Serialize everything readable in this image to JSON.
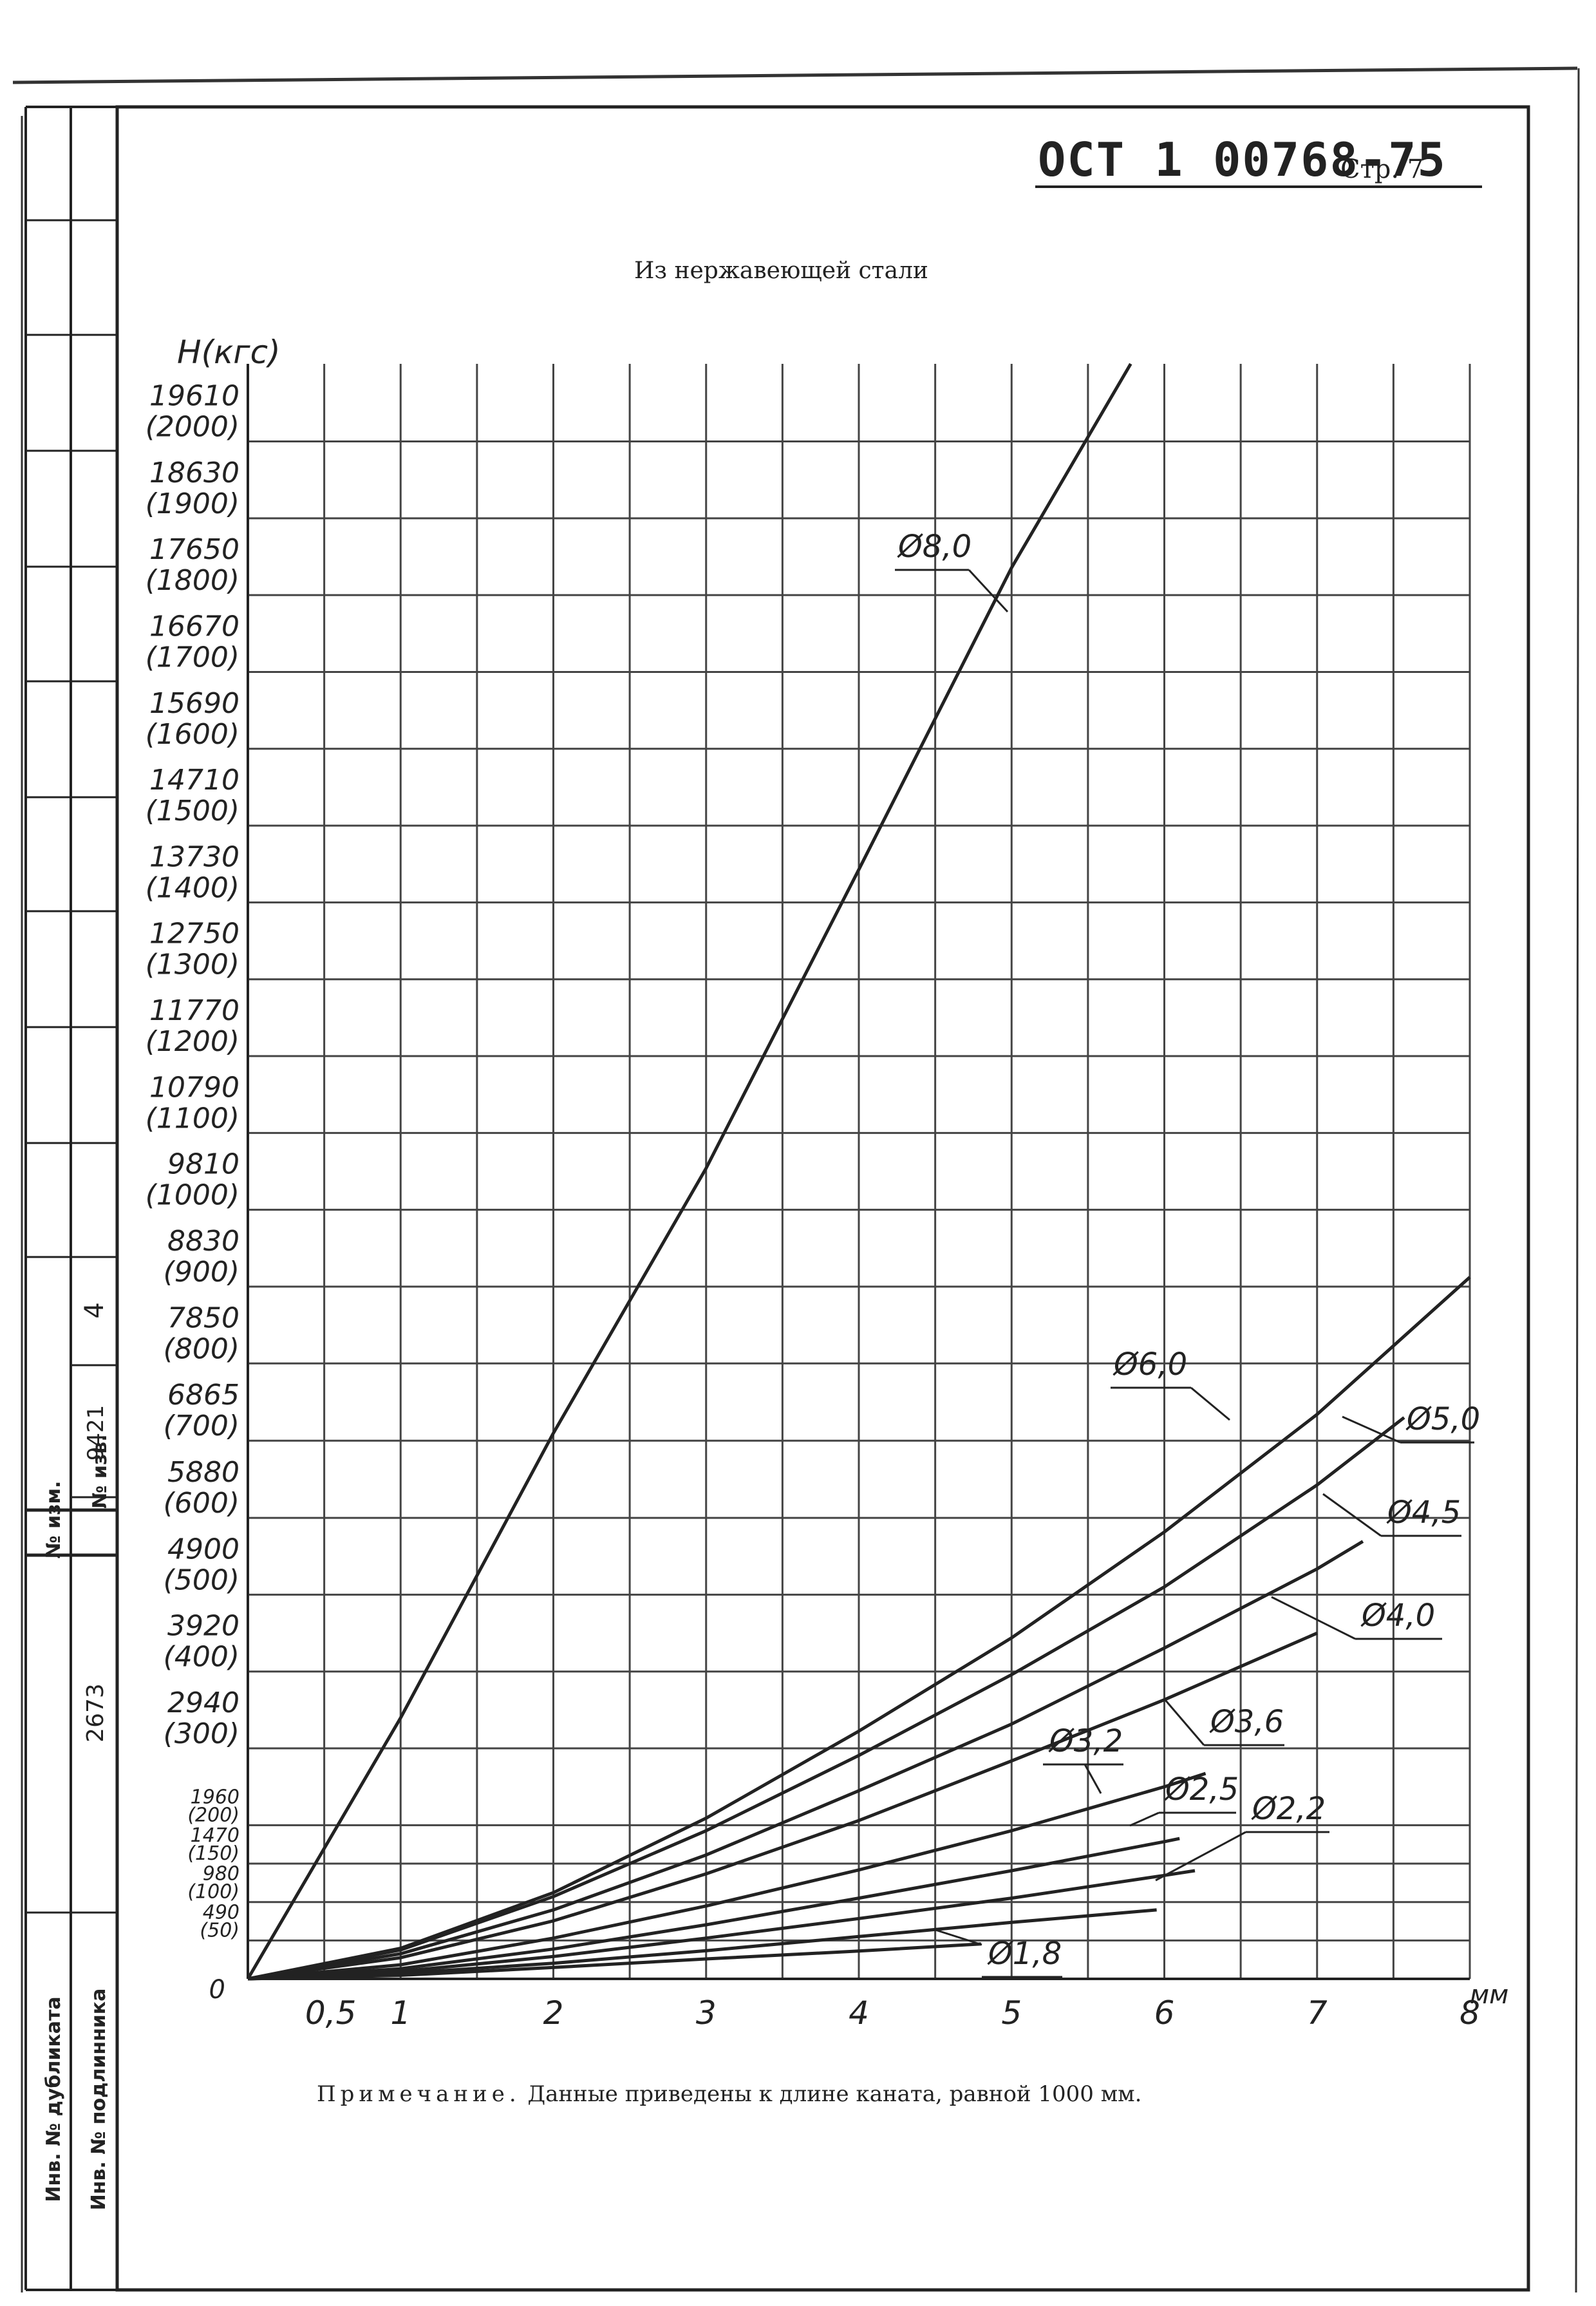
{
  "document": {
    "code": "ОСТ 1 00768-75",
    "page_label": "Стр. 7",
    "note_lead": "Примечание.",
    "note_text": "Данные приведены к длине каната, равной 1000 мм."
  },
  "stamp": {
    "cells": [
      {
        "text": "4"
      },
      {
        "text": "9421"
      },
      {
        "text": "№ изм."
      },
      {
        "text": "№ изв."
      },
      {
        "text": "2673"
      },
      {
        "text": "Инв. № дубликата"
      },
      {
        "text": "Инв. № подлинника"
      }
    ]
  },
  "chart_data": {
    "type": "line",
    "title": "Из нержавеющей стали",
    "ylabel": "Н(кгс)",
    "xlabel": "мм",
    "xlim": [
      0,
      8
    ],
    "ylim": [
      0,
      20600
    ],
    "grid": true,
    "x_ticks": [
      {
        "value": 0.5,
        "label": "0,5"
      },
      {
        "value": 1,
        "label": "1"
      },
      {
        "value": 2,
        "label": "2"
      },
      {
        "value": 3,
        "label": "3"
      },
      {
        "value": 4,
        "label": "4"
      },
      {
        "value": 5,
        "label": "5"
      },
      {
        "value": 6,
        "label": "6"
      },
      {
        "value": 7,
        "label": "7"
      },
      {
        "value": 8,
        "label": "8"
      }
    ],
    "origin_label": "0",
    "y_ticks": [
      {
        "value": 19610,
        "label": "19610",
        "sub": "(2000)"
      },
      {
        "value": 18630,
        "label": "18630",
        "sub": "(1900)"
      },
      {
        "value": 17650,
        "label": "17650",
        "sub": "(1800)"
      },
      {
        "value": 16670,
        "label": "16670",
        "sub": "(1700)"
      },
      {
        "value": 15690,
        "label": "15690",
        "sub": "(1600)"
      },
      {
        "value": 14710,
        "label": "14710",
        "sub": "(1500)"
      },
      {
        "value": 13730,
        "label": "13730",
        "sub": "(1400)"
      },
      {
        "value": 12750,
        "label": "12750",
        "sub": "(1300)"
      },
      {
        "value": 11770,
        "label": "11770",
        "sub": "(1200)"
      },
      {
        "value": 10790,
        "label": "10790",
        "sub": "(1100)"
      },
      {
        "value": 9810,
        "label": "9810",
        "sub": "(1000)"
      },
      {
        "value": 8830,
        "label": "8830",
        "sub": "(900)"
      },
      {
        "value": 7850,
        "label": "7850",
        "sub": "(800)"
      },
      {
        "value": 6865,
        "label": "6865",
        "sub": "(700)"
      },
      {
        "value": 5880,
        "label": "5880",
        "sub": "(600)"
      },
      {
        "value": 4900,
        "label": "4900",
        "sub": "(500)"
      },
      {
        "value": 3920,
        "label": "3920",
        "sub": "(400)"
      },
      {
        "value": 2940,
        "label": "2940",
        "sub": "(300)"
      },
      {
        "value": 1960,
        "label": "1960",
        "sub": "(200)"
      },
      {
        "value": 1470,
        "label": "1470",
        "sub": "(150)"
      },
      {
        "value": 980,
        "label": "980",
        "sub": "(100)"
      },
      {
        "value": 490,
        "label": "490",
        "sub": "(50)"
      }
    ],
    "series": [
      {
        "name": "Ø8,0",
        "x": [
          0,
          1,
          2,
          3,
          4,
          5,
          5.78
        ],
        "y": [
          0,
          3330,
          6960,
          10340,
          14150,
          18000,
          20600
        ]
      },
      {
        "name": "Ø6,0",
        "x": [
          0,
          1,
          2,
          3,
          4,
          5,
          6,
          7,
          8
        ],
        "y": [
          0,
          390,
          1100,
          2050,
          3160,
          4350,
          5700,
          7200,
          8950
        ]
      },
      {
        "name": "Ø5,0",
        "x": [
          0,
          1,
          2,
          3,
          4,
          5,
          6,
          7,
          7.57
        ],
        "y": [
          0,
          370,
          1050,
          1890,
          2850,
          3880,
          5000,
          6300,
          7160
        ]
      },
      {
        "name": "Ø4,5",
        "x": [
          0,
          1,
          2,
          3,
          4,
          5,
          6,
          7,
          7.3
        ],
        "y": [
          0,
          320,
          880,
          1580,
          2400,
          3250,
          4220,
          5230,
          5580
        ]
      },
      {
        "name": "Ø4,0",
        "x": [
          0,
          1,
          2,
          3,
          4,
          5,
          6,
          7
        ],
        "y": [
          0,
          270,
          740,
          1340,
          2020,
          2780,
          3560,
          4410
        ]
      },
      {
        "name": "Ø3,6",
        "x": [
          0,
          1,
          2,
          3,
          4,
          5,
          6,
          6.27
        ],
        "y": [
          0,
          180,
          520,
          930,
          1390,
          1890,
          2450,
          2620
        ]
      },
      {
        "name": "Ø3,2",
        "x": [
          0,
          1,
          2,
          3,
          4,
          5,
          6,
          6.1
        ],
        "y": [
          0,
          130,
          380,
          690,
          1030,
          1380,
          1750,
          1790
        ]
      },
      {
        "name": "Ø2,5",
        "x": [
          0,
          1,
          2,
          3,
          4,
          5,
          6,
          6.2
        ],
        "y": [
          0,
          95,
          285,
          520,
          770,
          1030,
          1320,
          1380
        ]
      },
      {
        "name": "Ø2,2",
        "x": [
          0,
          1,
          2,
          3,
          4,
          5,
          5.95
        ],
        "y": [
          0,
          70,
          200,
          360,
          540,
          720,
          880
        ]
      },
      {
        "name": "Ø1,8",
        "x": [
          0,
          1,
          2,
          3,
          4,
          4.8
        ],
        "y": [
          0,
          45,
          145,
          255,
          355,
          445
        ]
      }
    ]
  }
}
